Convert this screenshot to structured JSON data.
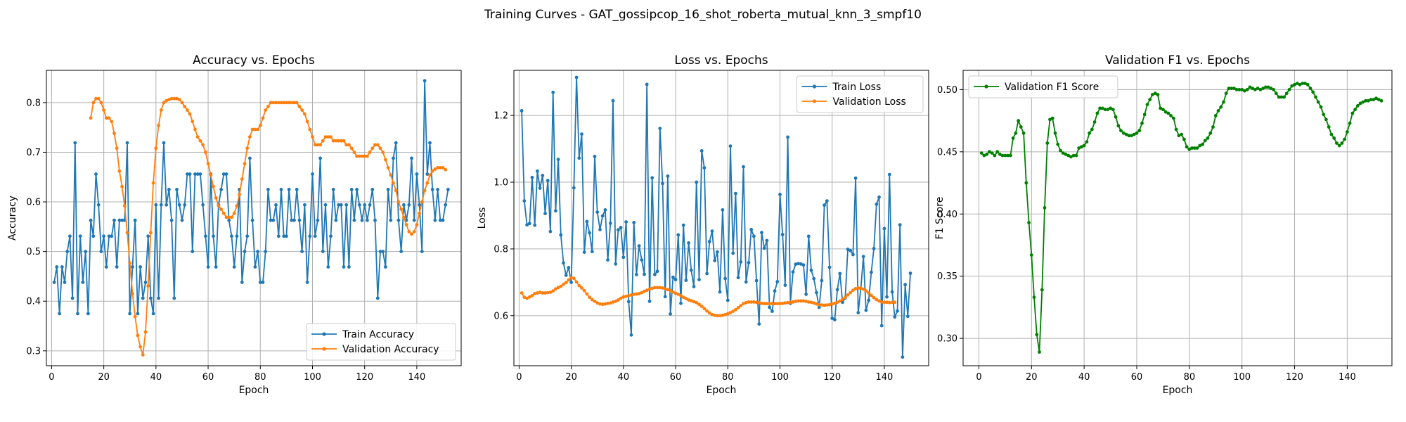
{
  "figure_title": "Training Curves - GAT_gossipcop_16_shot_roberta_mutual_knn_3_smpf10",
  "chart_data": [
    {
      "type": "line",
      "title": "Accuracy vs. Epochs",
      "xlabel": "Epoch",
      "ylabel": "Accuracy",
      "xlim": [
        -2,
        157
      ],
      "ylim": [
        0.27,
        0.865
      ],
      "xticks": [
        0,
        20,
        40,
        60,
        80,
        100,
        120,
        140
      ],
      "yticks": [
        0.3,
        0.4,
        0.5,
        0.6,
        0.7,
        0.8
      ],
      "ytick_decimals": 1,
      "grid": true,
      "legend": "lower right",
      "series": [
        {
          "name": "Train Accuracy",
          "color": "#1f77b4",
          "values": [
            0.438,
            0.469,
            0.375,
            0.469,
            0.438,
            0.5,
            0.531,
            0.406,
            0.719,
            0.375,
            0.531,
            0.438,
            0.5,
            0.375,
            0.563,
            0.531,
            0.656,
            0.594,
            0.5,
            0.531,
            0.469,
            0.531,
            0.531,
            0.563,
            0.469,
            0.563,
            0.563,
            0.563,
            0.719,
            0.375,
            0.469,
            0.563,
            0.375,
            0.469,
            0.406,
            0.438,
            0.531,
            0.406,
            0.375,
            0.594,
            0.406,
            0.594,
            0.719,
            0.594,
            0.625,
            0.563,
            0.406,
            0.625,
            0.594,
            0.563,
            0.594,
            0.656,
            0.656,
            0.5,
            0.656,
            0.656,
            0.656,
            0.594,
            0.531,
            0.469,
            0.656,
            0.531,
            0.469,
            0.594,
            0.625,
            0.656,
            0.656,
            0.563,
            0.531,
            0.469,
            0.531,
            0.625,
            0.438,
            0.5,
            0.531,
            0.688,
            0.563,
            0.469,
            0.5,
            0.438,
            0.438,
            0.5,
            0.625,
            0.563,
            0.563,
            0.594,
            0.531,
            0.625,
            0.531,
            0.531,
            0.625,
            0.563,
            0.563,
            0.625,
            0.563,
            0.5,
            0.594,
            0.438,
            0.531,
            0.656,
            0.531,
            0.563,
            0.688,
            0.5,
            0.594,
            0.469,
            0.531,
            0.625,
            0.563,
            0.594,
            0.594,
            0.469,
            0.594,
            0.469,
            0.625,
            0.563,
            0.625,
            0.594,
            0.563,
            0.594,
            0.563,
            0.594,
            0.625,
            0.563,
            0.406,
            0.5,
            0.5,
            0.469,
            0.625,
            0.563,
            0.688,
            0.719,
            0.563,
            0.5,
            0.594,
            0.563,
            0.594,
            0.688,
            0.563,
            0.656,
            0.594,
            0.5,
            0.844,
            0.656,
            0.719,
            0.625,
            0.563,
            0.625,
            0.563,
            0.563,
            0.594,
            0.625
          ],
          "x_start": 1
        },
        {
          "name": "Validation Accuracy",
          "color": "#ff7f0e",
          "values": [
            0.769,
            0.8,
            0.808,
            0.808,
            0.8,
            0.785,
            0.769,
            0.769,
            0.762,
            0.738,
            0.708,
            0.662,
            0.631,
            0.592,
            0.538,
            0.477,
            0.415,
            0.369,
            0.331,
            0.308,
            0.292,
            0.338,
            0.431,
            0.538,
            0.638,
            0.708,
            0.754,
            0.785,
            0.8,
            0.804,
            0.806,
            0.808,
            0.808,
            0.808,
            0.806,
            0.8,
            0.792,
            0.785,
            0.777,
            0.762,
            0.746,
            0.731,
            0.723,
            0.715,
            0.7,
            0.677,
            0.654,
            0.631,
            0.608,
            0.592,
            0.585,
            0.577,
            0.569,
            0.569,
            0.569,
            0.577,
            0.592,
            0.615,
            0.646,
            0.677,
            0.708,
            0.731,
            0.746,
            0.746,
            0.746,
            0.754,
            0.769,
            0.785,
            0.792,
            0.8,
            0.8,
            0.8,
            0.8,
            0.8,
            0.8,
            0.8,
            0.8,
            0.8,
            0.8,
            0.8,
            0.792,
            0.785,
            0.777,
            0.762,
            0.746,
            0.731,
            0.715,
            0.715,
            0.715,
            0.723,
            0.731,
            0.731,
            0.731,
            0.723,
            0.723,
            0.723,
            0.723,
            0.723,
            0.715,
            0.715,
            0.708,
            0.7,
            0.692,
            0.692,
            0.692,
            0.692,
            0.692,
            0.7,
            0.708,
            0.715,
            0.715,
            0.708,
            0.7,
            0.685,
            0.669,
            0.654,
            0.638,
            0.623,
            0.6,
            0.585,
            0.569,
            0.554,
            0.54,
            0.535,
            0.54,
            0.554,
            0.577,
            0.6,
            0.623,
            0.638,
            0.654,
            0.662,
            0.666,
            0.669,
            0.669,
            0.669,
            0.665
          ],
          "x_start": 15
        }
      ]
    },
    {
      "type": "line",
      "title": "Loss vs. Epochs",
      "xlabel": "Epoch",
      "ylabel": "Loss",
      "xlim": [
        -2,
        157
      ],
      "ylim": [
        0.45,
        1.335
      ],
      "xticks": [
        0,
        20,
        40,
        60,
        80,
        100,
        120,
        140
      ],
      "yticks": [
        0.6,
        0.8,
        1.0,
        1.2
      ],
      "ytick_decimals": 1,
      "grid": true,
      "legend": "upper right",
      "series": [
        {
          "name": "Train Loss",
          "color": "#1f77b4",
          "values": [
            1.214,
            0.944,
            0.872,
            0.876,
            1.014,
            0.871,
            1.033,
            0.982,
            1.02,
            0.906,
            1.005,
            0.852,
            1.269,
            0.914,
            1.068,
            0.842,
            0.758,
            0.721,
            0.744,
            0.7,
            0.983,
            1.314,
            1.072,
            1.144,
            0.79,
            0.882,
            0.848,
            0.792,
            1.077,
            0.91,
            0.858,
            0.899,
            0.917,
            0.767,
            0.877,
            1.244,
            0.755,
            0.857,
            0.864,
            0.775,
            0.881,
            0.642,
            0.542,
            0.879,
            0.723,
            0.809,
            0.767,
            0.724,
            1.293,
            0.643,
            1.013,
            0.723,
            0.733,
            1.161,
            0.996,
            0.657,
            1.018,
            0.605,
            0.715,
            0.708,
            0.842,
            0.637,
            0.871,
            0.706,
            0.818,
            0.736,
            0.687,
            1.0,
            0.708,
            1.094,
            1.043,
            0.726,
            0.822,
            0.853,
            0.765,
            0.791,
            0.671,
            0.917,
            0.711,
            0.646,
            1.108,
            0.787,
            0.966,
            0.714,
            0.761,
            1.046,
            0.701,
            0.759,
            0.858,
            0.838,
            0.705,
            0.575,
            0.849,
            0.802,
            0.825,
            0.625,
            0.613,
            0.674,
            0.702,
            0.963,
            0.843,
            0.691,
            1.135,
            0.637,
            0.731,
            0.754,
            0.756,
            0.755,
            0.752,
            0.664,
            0.838,
            0.736,
            0.711,
            0.669,
            0.625,
            0.705,
            0.931,
            0.944,
            0.745,
            0.592,
            0.588,
            0.678,
            0.726,
            0.64,
            0.653,
            0.799,
            0.795,
            0.783,
            1.012,
            0.609,
            0.682,
            0.777,
            0.616,
            0.646,
            0.73,
            0.801,
            0.934,
            0.955,
            0.57,
            0.861,
            0.656,
            1.023,
            0.671,
            0.596,
            0.614,
            0.872,
            0.476,
            0.693,
            0.598,
            0.727
          ]
        },
        {
          "name": "Validation Loss",
          "color": "#ff7f0e",
          "values": [
            0.668,
            0.655,
            0.652,
            0.656,
            0.66,
            0.666,
            0.668,
            0.67,
            0.668,
            0.668,
            0.669,
            0.67,
            0.674,
            0.68,
            0.684,
            0.688,
            0.694,
            0.699,
            0.707,
            0.713,
            0.712,
            0.701,
            0.69,
            0.683,
            0.675,
            0.665,
            0.655,
            0.648,
            0.643,
            0.638,
            0.635,
            0.634,
            0.635,
            0.637,
            0.638,
            0.641,
            0.643,
            0.647,
            0.652,
            0.656,
            0.658,
            0.66,
            0.662,
            0.664,
            0.665,
            0.666,
            0.669,
            0.673,
            0.676,
            0.679,
            0.682,
            0.684,
            0.684,
            0.684,
            0.683,
            0.68,
            0.678,
            0.675,
            0.671,
            0.667,
            0.664,
            0.66,
            0.655,
            0.651,
            0.647,
            0.645,
            0.642,
            0.639,
            0.634,
            0.628,
            0.621,
            0.614,
            0.608,
            0.603,
            0.601,
            0.6,
            0.6,
            0.601,
            0.603,
            0.606,
            0.609,
            0.613,
            0.618,
            0.624,
            0.63,
            0.636,
            0.639,
            0.641,
            0.641,
            0.641,
            0.64,
            0.639,
            0.637,
            0.636,
            0.636,
            0.636,
            0.636,
            0.636,
            0.636,
            0.636,
            0.637,
            0.638,
            0.639,
            0.64,
            0.641,
            0.643,
            0.644,
            0.644,
            0.644,
            0.643,
            0.641,
            0.64,
            0.638,
            0.635,
            0.633,
            0.632,
            0.631,
            0.632,
            0.633,
            0.635,
            0.637,
            0.64,
            0.644,
            0.649,
            0.655,
            0.662,
            0.669,
            0.676,
            0.681,
            0.683,
            0.682,
            0.679,
            0.674,
            0.668,
            0.661,
            0.654,
            0.648,
            0.644,
            0.641,
            0.64,
            0.64,
            0.639,
            0.64,
            0.64
          ],
          "x_start": 1
        }
      ]
    },
    {
      "type": "line",
      "title": "Validation F1 vs. Epochs",
      "xlabel": "Epoch",
      "ylabel": "F1 Score",
      "xlim": [
        -6,
        157
      ],
      "ylim": [
        0.278,
        0.5155
      ],
      "xticks": [
        0,
        20,
        40,
        60,
        80,
        100,
        120,
        140
      ],
      "yticks": [
        0.3,
        0.35,
        0.4,
        0.45,
        0.5
      ],
      "ytick_decimals": 2,
      "grid": true,
      "legend": "upper left",
      "series": [
        {
          "name": "Validation F1 Score",
          "color": "#008000",
          "values": [
            0.449,
            0.447,
            0.448,
            0.45,
            0.449,
            0.447,
            0.45,
            0.448,
            0.447,
            0.447,
            0.447,
            0.447,
            0.461,
            0.465,
            0.475,
            0.47,
            0.465,
            0.425,
            0.393,
            0.367,
            0.333,
            0.303,
            0.289,
            0.339,
            0.405,
            0.457,
            0.476,
            0.477,
            0.465,
            0.456,
            0.451,
            0.449,
            0.448,
            0.447,
            0.446,
            0.447,
            0.447,
            0.453,
            0.454,
            0.455,
            0.458,
            0.465,
            0.468,
            0.474,
            0.481,
            0.485,
            0.485,
            0.484,
            0.484,
            0.485,
            0.484,
            0.478,
            0.471,
            0.467,
            0.465,
            0.464,
            0.463,
            0.463,
            0.464,
            0.465,
            0.467,
            0.473,
            0.48,
            0.488,
            0.492,
            0.496,
            0.497,
            0.496,
            0.485,
            0.484,
            0.482,
            0.481,
            0.479,
            0.477,
            0.468,
            0.463,
            0.464,
            0.46,
            0.454,
            0.452,
            0.453,
            0.453,
            0.453,
            0.455,
            0.456,
            0.459,
            0.461,
            0.465,
            0.47,
            0.479,
            0.483,
            0.486,
            0.49,
            0.497,
            0.501,
            0.501,
            0.501,
            0.5,
            0.5,
            0.5,
            0.499,
            0.5,
            0.502,
            0.501,
            0.5,
            0.501,
            0.5,
            0.501,
            0.502,
            0.502,
            0.501,
            0.5,
            0.497,
            0.494,
            0.494,
            0.494,
            0.497,
            0.5,
            0.503,
            0.504,
            0.505,
            0.504,
            0.505,
            0.505,
            0.504,
            0.501,
            0.498,
            0.494,
            0.49,
            0.486,
            0.48,
            0.476,
            0.47,
            0.464,
            0.461,
            0.457,
            0.455,
            0.457,
            0.46,
            0.466,
            0.473,
            0.481,
            0.484,
            0.487,
            0.489,
            0.49,
            0.491,
            0.491,
            0.492,
            0.492,
            0.493,
            0.492,
            0.491
          ],
          "x_start": 1
        }
      ]
    }
  ]
}
